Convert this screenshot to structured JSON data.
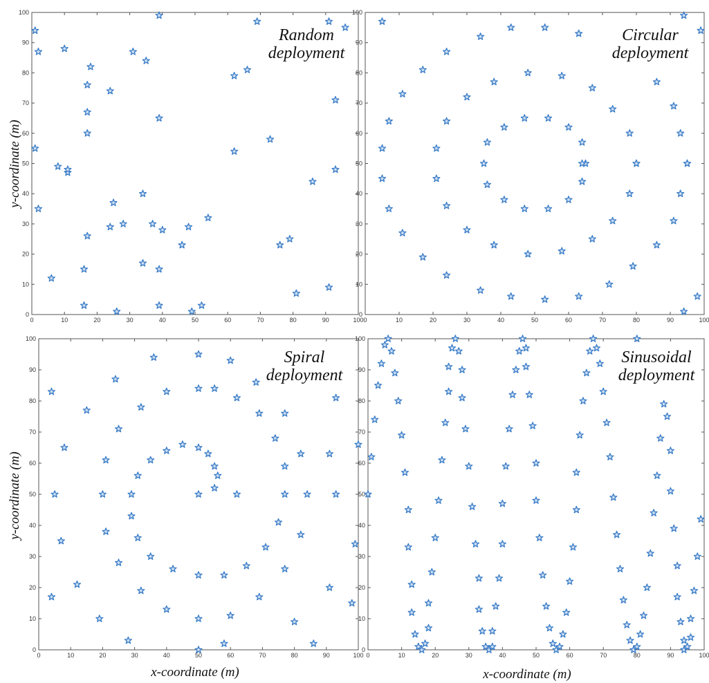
{
  "figure": {
    "xlabel": "x-coordinate (m)",
    "ylabel": "y-coordinate (m)"
  },
  "chart_data": [
    {
      "type": "scatter",
      "title_lines": [
        "Random",
        "deployment"
      ],
      "xlim": [
        0,
        100
      ],
      "ylim": [
        0,
        100
      ],
      "xticks": [
        0,
        10,
        20,
        30,
        40,
        50,
        60,
        70,
        80,
        90,
        100
      ],
      "yticks": [
        0,
        10,
        20,
        30,
        40,
        50,
        60,
        70,
        80,
        90,
        100
      ],
      "grid": false,
      "marker": "star",
      "color": "#3a7cc7",
      "points": [
        [
          1,
          94
        ],
        [
          2,
          87
        ],
        [
          10,
          88
        ],
        [
          1,
          55
        ],
        [
          2,
          35
        ],
        [
          8,
          49
        ],
        [
          11,
          47
        ],
        [
          11,
          48
        ],
        [
          6,
          12
        ],
        [
          16,
          3
        ],
        [
          16,
          15
        ],
        [
          17,
          26
        ],
        [
          17,
          60
        ],
        [
          17,
          67
        ],
        [
          17,
          76
        ],
        [
          18,
          82
        ],
        [
          24,
          74
        ],
        [
          25,
          37
        ],
        [
          24,
          29
        ],
        [
          28,
          30
        ],
        [
          26,
          1
        ],
        [
          31,
          87
        ],
        [
          35,
          84
        ],
        [
          34,
          40
        ],
        [
          37,
          30
        ],
        [
          34,
          17
        ],
        [
          39,
          15
        ],
        [
          39,
          3
        ],
        [
          39,
          65
        ],
        [
          39,
          99
        ],
        [
          40,
          28
        ],
        [
          46,
          23
        ],
        [
          48,
          29
        ],
        [
          49,
          1
        ],
        [
          52,
          3
        ],
        [
          54,
          32
        ],
        [
          62,
          79
        ],
        [
          62,
          54
        ],
        [
          66,
          81
        ],
        [
          69,
          97
        ],
        [
          73,
          58
        ],
        [
          76,
          23
        ],
        [
          79,
          25
        ],
        [
          81,
          7
        ],
        [
          86,
          44
        ],
        [
          91,
          97
        ],
        [
          91,
          9
        ],
        [
          93,
          71
        ],
        [
          93,
          48
        ],
        [
          96,
          95
        ]
      ]
    },
    {
      "type": "scatter",
      "title_lines": [
        "Circular",
        "deployment"
      ],
      "xlim": [
        0,
        100
      ],
      "ylim": [
        0,
        100
      ],
      "xticks": [
        0,
        10,
        20,
        30,
        40,
        50,
        60,
        70,
        80,
        90,
        100
      ],
      "yticks": [
        0,
        10,
        20,
        30,
        40,
        50,
        60,
        70,
        80,
        90,
        100
      ],
      "grid": false,
      "marker": "star",
      "color": "#3a7cc7",
      "points": [
        [
          5,
          97
        ],
        [
          24,
          87
        ],
        [
          34,
          92
        ],
        [
          43,
          95
        ],
        [
          53,
          95
        ],
        [
          63,
          93
        ],
        [
          94,
          99
        ],
        [
          99,
          94
        ],
        [
          17,
          81
        ],
        [
          11,
          73
        ],
        [
          7,
          64
        ],
        [
          5,
          55
        ],
        [
          5,
          45
        ],
        [
          7,
          35
        ],
        [
          11,
          27
        ],
        [
          17,
          19
        ],
        [
          24,
          13
        ],
        [
          34,
          8
        ],
        [
          43,
          6
        ],
        [
          53,
          5
        ],
        [
          63,
          6
        ],
        [
          72,
          10
        ],
        [
          79,
          16
        ],
        [
          86,
          23
        ],
        [
          91,
          31
        ],
        [
          93,
          40
        ],
        [
          95,
          50
        ],
        [
          93,
          60
        ],
        [
          91,
          69
        ],
        [
          86,
          77
        ],
        [
          73,
          68
        ],
        [
          78,
          60
        ],
        [
          80,
          50
        ],
        [
          78,
          40
        ],
        [
          73,
          31
        ],
        [
          67,
          25
        ],
        [
          58,
          21
        ],
        [
          48,
          20
        ],
        [
          38,
          23
        ],
        [
          30,
          28
        ],
        [
          24,
          36
        ],
        [
          21,
          45
        ],
        [
          21,
          55
        ],
        [
          24,
          64
        ],
        [
          30,
          72
        ],
        [
          38,
          77
        ],
        [
          48,
          80
        ],
        [
          58,
          79
        ],
        [
          67,
          75
        ],
        [
          36,
          57
        ],
        [
          35,
          50
        ],
        [
          36,
          43
        ],
        [
          41,
          38
        ],
        [
          47,
          35
        ],
        [
          54,
          35
        ],
        [
          60,
          38
        ],
        [
          64,
          44
        ],
        [
          65,
          50
        ],
        [
          64,
          57
        ],
        [
          60,
          62
        ],
        [
          54,
          65
        ],
        [
          47,
          65
        ],
        [
          41,
          62
        ],
        [
          64,
          50
        ],
        [
          80,
          50
        ],
        [
          95,
          50
        ],
        [
          94,
          1
        ],
        [
          98,
          6
        ]
      ]
    },
    {
      "type": "scatter",
      "title_lines": [
        "Spiral",
        "deployment"
      ],
      "xlim": [
        0,
        100
      ],
      "ylim": [
        0,
        100
      ],
      "xticks": [
        0,
        10,
        20,
        30,
        40,
        50,
        60,
        70,
        80,
        90,
        100
      ],
      "yticks": [
        0,
        10,
        20,
        30,
        40,
        50,
        60,
        70,
        80,
        90,
        100
      ],
      "grid": false,
      "marker": "star",
      "color": "#3a7cc7",
      "points": [
        [
          50,
          50
        ],
        [
          50,
          65
        ],
        [
          45,
          66
        ],
        [
          40,
          64
        ],
        [
          35,
          61
        ],
        [
          31,
          56
        ],
        [
          29,
          50
        ],
        [
          29,
          43
        ],
        [
          31,
          36
        ],
        [
          35,
          30
        ],
        [
          42,
          26
        ],
        [
          50,
          24
        ],
        [
          58,
          24
        ],
        [
          65,
          27
        ],
        [
          71,
          33
        ],
        [
          75,
          41
        ],
        [
          77,
          50
        ],
        [
          77,
          59
        ],
        [
          74,
          68
        ],
        [
          69,
          76
        ],
        [
          62,
          81
        ],
        [
          55,
          84
        ],
        [
          50,
          84
        ],
        [
          40,
          83
        ],
        [
          32,
          78
        ],
        [
          25,
          71
        ],
        [
          21,
          61
        ],
        [
          20,
          50
        ],
        [
          21,
          38
        ],
        [
          25,
          28
        ],
        [
          32,
          19
        ],
        [
          40,
          13
        ],
        [
          50,
          10
        ],
        [
          60,
          11
        ],
        [
          69,
          17
        ],
        [
          77,
          26
        ],
        [
          82,
          37
        ],
        [
          84,
          50
        ],
        [
          82,
          63
        ],
        [
          77,
          76
        ],
        [
          68,
          86
        ],
        [
          60,
          93
        ],
        [
          50,
          95
        ],
        [
          36,
          94
        ],
        [
          24,
          87
        ],
        [
          15,
          77
        ],
        [
          8,
          65
        ],
        [
          5,
          50
        ],
        [
          7,
          35
        ],
        [
          12,
          21
        ],
        [
          19,
          10
        ],
        [
          28,
          3
        ],
        [
          4,
          83
        ],
        [
          4,
          17
        ],
        [
          53,
          63
        ],
        [
          55,
          59
        ],
        [
          56,
          56
        ],
        [
          55,
          52
        ],
        [
          50,
          0
        ],
        [
          58,
          2
        ],
        [
          80,
          9
        ],
        [
          86,
          2
        ],
        [
          91,
          20
        ],
        [
          91,
          63
        ],
        [
          93,
          50
        ],
        [
          98,
          15
        ],
        [
          99,
          34
        ],
        [
          100,
          66
        ],
        [
          93,
          81
        ],
        [
          62,
          50
        ]
      ]
    },
    {
      "type": "scatter",
      "title_lines": [
        "Sinusoidal",
        "deployment"
      ],
      "xlim": [
        0,
        100
      ],
      "ylim": [
        0,
        100
      ],
      "xticks": [
        0,
        10,
        20,
        30,
        40,
        50,
        60,
        70,
        80,
        90,
        100
      ],
      "yticks": [
        0,
        10,
        20,
        30,
        40,
        50,
        60,
        70,
        80,
        90,
        100
      ],
      "grid": false,
      "marker": "star",
      "color": "#3a7cc7",
      "points": [
        [
          0,
          50
        ],
        [
          1,
          62
        ],
        [
          2,
          74
        ],
        [
          3,
          85
        ],
        [
          4,
          92
        ],
        [
          5,
          98
        ],
        [
          6,
          100
        ],
        [
          7,
          96
        ],
        [
          8,
          89
        ],
        [
          9,
          80
        ],
        [
          10,
          69
        ],
        [
          11,
          57
        ],
        [
          12,
          45
        ],
        [
          12,
          33
        ],
        [
          13,
          21
        ],
        [
          13,
          12
        ],
        [
          14,
          5
        ],
        [
          15,
          1
        ],
        [
          16,
          0
        ],
        [
          17,
          2
        ],
        [
          18,
          7
        ],
        [
          18,
          15
        ],
        [
          19,
          25
        ],
        [
          20,
          36
        ],
        [
          21,
          48
        ],
        [
          22,
          61
        ],
        [
          23,
          73
        ],
        [
          24,
          83
        ],
        [
          24,
          91
        ],
        [
          25,
          97
        ],
        [
          26,
          100
        ],
        [
          27,
          96
        ],
        [
          28,
          90
        ],
        [
          28,
          81
        ],
        [
          29,
          71
        ],
        [
          30,
          59
        ],
        [
          31,
          46
        ],
        [
          32,
          34
        ],
        [
          33,
          23
        ],
        [
          33,
          13
        ],
        [
          34,
          6
        ],
        [
          35,
          1
        ],
        [
          36,
          0
        ],
        [
          37,
          1
        ],
        [
          37,
          6
        ],
        [
          38,
          14
        ],
        [
          39,
          23
        ],
        [
          40,
          34
        ],
        [
          40,
          47
        ],
        [
          41,
          59
        ],
        [
          42,
          71
        ],
        [
          43,
          82
        ],
        [
          44,
          90
        ],
        [
          45,
          96
        ],
        [
          46,
          100
        ],
        [
          47,
          97
        ],
        [
          47,
          91
        ],
        [
          48,
          82
        ],
        [
          49,
          72
        ],
        [
          50,
          60
        ],
        [
          50,
          48
        ],
        [
          51,
          36
        ],
        [
          52,
          24
        ],
        [
          53,
          14
        ],
        [
          54,
          7
        ],
        [
          55,
          2
        ],
        [
          56,
          0
        ],
        [
          57,
          1
        ],
        [
          58,
          5
        ],
        [
          59,
          12
        ],
        [
          60,
          22
        ],
        [
          61,
          33
        ],
        [
          62,
          45
        ],
        [
          62,
          57
        ],
        [
          63,
          69
        ],
        [
          64,
          80
        ],
        [
          65,
          89
        ],
        [
          66,
          96
        ],
        [
          67,
          100
        ],
        [
          68,
          97
        ],
        [
          69,
          92
        ],
        [
          70,
          83
        ],
        [
          71,
          73
        ],
        [
          72,
          62
        ],
        [
          73,
          49
        ],
        [
          74,
          37
        ],
        [
          75,
          26
        ],
        [
          76,
          16
        ],
        [
          77,
          8
        ],
        [
          78,
          3
        ],
        [
          79,
          0
        ],
        [
          80,
          1
        ],
        [
          81,
          5
        ],
        [
          82,
          11
        ],
        [
          83,
          20
        ],
        [
          84,
          31
        ],
        [
          85,
          44
        ],
        [
          86,
          56
        ],
        [
          87,
          68
        ],
        [
          88,
          79
        ],
        [
          89,
          75
        ],
        [
          90,
          64
        ],
        [
          90,
          51
        ],
        [
          91,
          39
        ],
        [
          92,
          27
        ],
        [
          92,
          17
        ],
        [
          93,
          9
        ],
        [
          94,
          3
        ],
        [
          94,
          0
        ],
        [
          95,
          1
        ],
        [
          96,
          4
        ],
        [
          96,
          10
        ],
        [
          97,
          19
        ],
        [
          98,
          30
        ],
        [
          99,
          42
        ],
        [
          80,
          100
        ]
      ]
    }
  ]
}
